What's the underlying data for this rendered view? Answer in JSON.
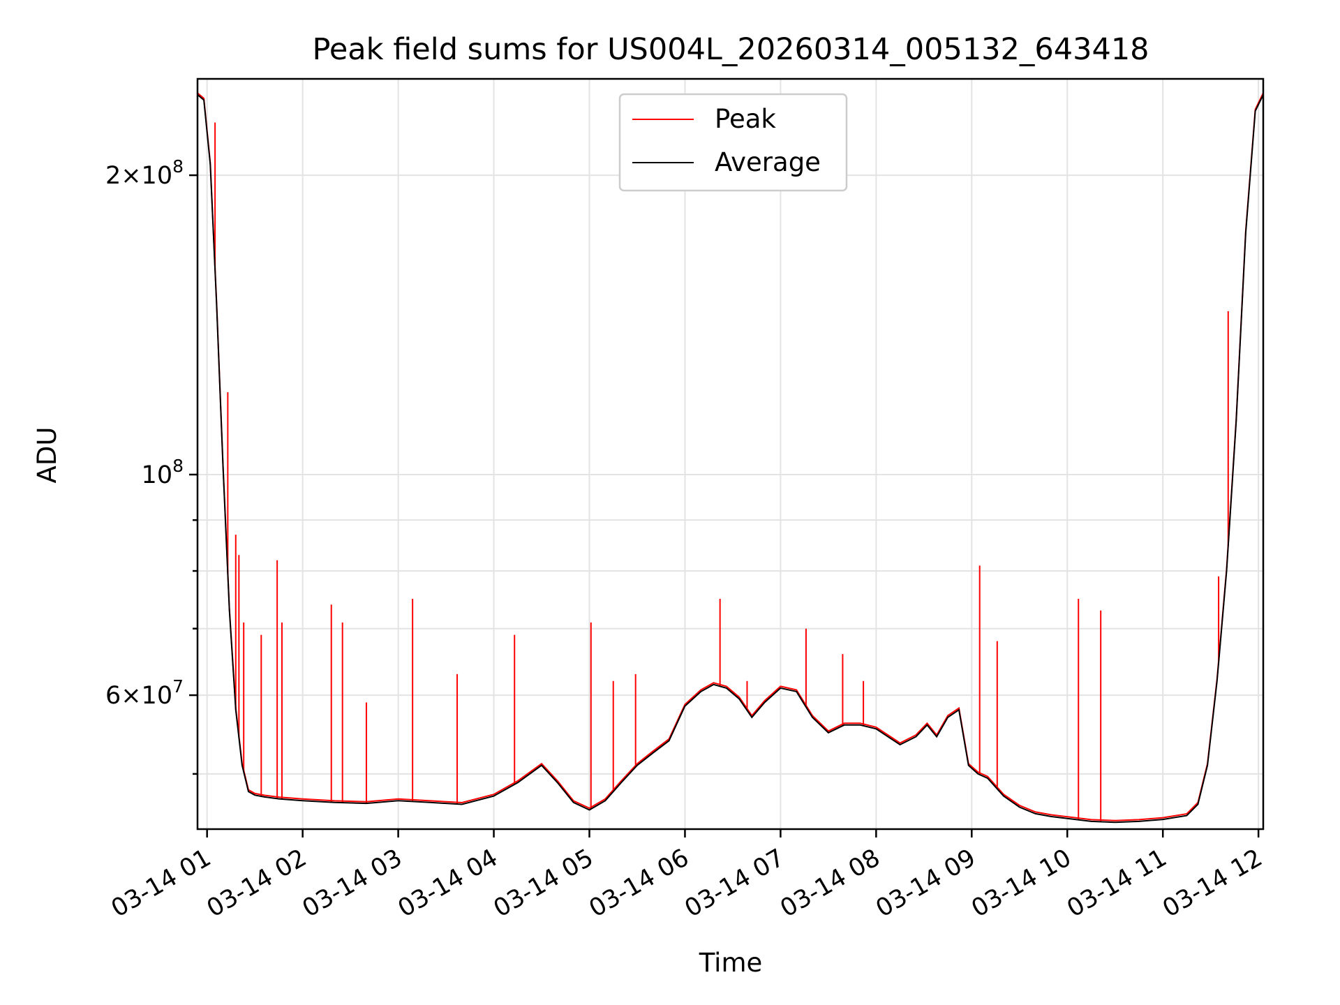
{
  "chart_data": {
    "type": "line",
    "title": "Peak field sums for US004L_20260314_005132_643418",
    "xlabel": "Time",
    "ylabel": "ADU",
    "yscale": "log",
    "grid": true,
    "legend_position": "upper center",
    "x_range": [
      "2026-03-14 00:54",
      "2026-03-14 12:03"
    ],
    "ylim": [
      44000000,
      250000000
    ],
    "x_ticks": [
      {
        "value": "2026-03-14 01:00",
        "label": "03-14 01"
      },
      {
        "value": "2026-03-14 02:00",
        "label": "03-14 02"
      },
      {
        "value": "2026-03-14 03:00",
        "label": "03-14 03"
      },
      {
        "value": "2026-03-14 04:00",
        "label": "03-14 04"
      },
      {
        "value": "2026-03-14 05:00",
        "label": "03-14 05"
      },
      {
        "value": "2026-03-14 06:00",
        "label": "03-14 06"
      },
      {
        "value": "2026-03-14 07:00",
        "label": "03-14 07"
      },
      {
        "value": "2026-03-14 08:00",
        "label": "03-14 08"
      },
      {
        "value": "2026-03-14 09:00",
        "label": "03-14 09"
      },
      {
        "value": "2026-03-14 10:00",
        "label": "03-14 10"
      },
      {
        "value": "2026-03-14 11:00",
        "label": "03-14 11"
      },
      {
        "value": "2026-03-14 12:00",
        "label": "03-14 12"
      }
    ],
    "y_major_ticks": [
      {
        "value": 60000000,
        "mantissa": "6",
        "exponent": "7"
      },
      {
        "value": 100000000,
        "mantissa": "",
        "exponent": "8"
      },
      {
        "value": 200000000,
        "mantissa": "2",
        "exponent": "8"
      }
    ],
    "y_minor_ticks": [
      50000000,
      70000000,
      80000000,
      90000000
    ],
    "series": [
      {
        "name": "Average",
        "color": "#000000",
        "x": [
          "2026-03-14 00:54",
          "2026-03-14 00:58",
          "2026-03-14 01:02",
          "2026-03-14 01:06",
          "2026-03-14 01:10",
          "2026-03-14 01:14",
          "2026-03-14 01:18",
          "2026-03-14 01:22",
          "2026-03-14 01:26",
          "2026-03-14 01:30",
          "2026-03-14 01:36",
          "2026-03-14 01:45",
          "2026-03-14 02:00",
          "2026-03-14 02:20",
          "2026-03-14 02:40",
          "2026-03-14 03:00",
          "2026-03-14 03:20",
          "2026-03-14 03:40",
          "2026-03-14 04:00",
          "2026-03-14 04:15",
          "2026-03-14 04:30",
          "2026-03-14 04:40",
          "2026-03-14 04:50",
          "2026-03-14 05:00",
          "2026-03-14 05:10",
          "2026-03-14 05:20",
          "2026-03-14 05:30",
          "2026-03-14 05:40",
          "2026-03-14 05:50",
          "2026-03-14 06:00",
          "2026-03-14 06:10",
          "2026-03-14 06:18",
          "2026-03-14 06:26",
          "2026-03-14 06:34",
          "2026-03-14 06:42",
          "2026-03-14 06:50",
          "2026-03-14 07:00",
          "2026-03-14 07:10",
          "2026-03-14 07:20",
          "2026-03-14 07:30",
          "2026-03-14 07:40",
          "2026-03-14 07:50",
          "2026-03-14 08:00",
          "2026-03-14 08:15",
          "2026-03-14 08:25",
          "2026-03-14 08:32",
          "2026-03-14 08:38",
          "2026-03-14 08:45",
          "2026-03-14 08:52",
          "2026-03-14 08:58",
          "2026-03-14 09:04",
          "2026-03-14 09:10",
          "2026-03-14 09:20",
          "2026-03-14 09:30",
          "2026-03-14 09:40",
          "2026-03-14 09:50",
          "2026-03-14 10:00",
          "2026-03-14 10:15",
          "2026-03-14 10:30",
          "2026-03-14 10:45",
          "2026-03-14 11:00",
          "2026-03-14 11:15",
          "2026-03-14 11:22",
          "2026-03-14 11:28",
          "2026-03-14 11:34",
          "2026-03-14 11:40",
          "2026-03-14 11:46",
          "2026-03-14 11:52",
          "2026-03-14 11:58",
          "2026-03-14 12:03"
        ],
        "y": [
          241000000,
          238000000,
          205000000,
          148000000,
          102000000,
          73000000,
          58000000,
          51000000,
          48000000,
          47600000,
          47400000,
          47200000,
          47000000,
          46800000,
          46700000,
          47000000,
          46800000,
          46600000,
          47500000,
          49000000,
          51000000,
          49000000,
          46800000,
          46000000,
          47000000,
          49000000,
          51000000,
          52500000,
          54000000,
          58500000,
          60500000,
          61500000,
          61000000,
          59500000,
          57000000,
          59000000,
          61000000,
          60500000,
          57000000,
          55000000,
          56000000,
          56000000,
          55500000,
          53500000,
          54500000,
          56000000,
          54500000,
          57000000,
          58000000,
          51000000,
          50000000,
          49500000,
          47500000,
          46300000,
          45600000,
          45300000,
          45100000,
          44800000,
          44700000,
          44800000,
          45000000,
          45400000,
          46600000,
          51000000,
          62000000,
          80000000,
          113000000,
          175000000,
          232000000,
          241000000
        ]
      },
      {
        "name": "Peak",
        "color": "#ff0000",
        "x": [
          "2026-03-14 01:05",
          "2026-03-14 01:13",
          "2026-03-14 01:18",
          "2026-03-14 01:20",
          "2026-03-14 01:23",
          "2026-03-14 01:34",
          "2026-03-14 01:44",
          "2026-03-14 01:47",
          "2026-03-14 02:18",
          "2026-03-14 02:25",
          "2026-03-14 02:40",
          "2026-03-14 03:09",
          "2026-03-14 03:37",
          "2026-03-14 04:13",
          "2026-03-14 05:01",
          "2026-03-14 05:15",
          "2026-03-14 05:29",
          "2026-03-14 06:22",
          "2026-03-14 06:39",
          "2026-03-14 07:16",
          "2026-03-14 07:39",
          "2026-03-14 07:52",
          "2026-03-14 09:05",
          "2026-03-14 09:16",
          "2026-03-14 10:07",
          "2026-03-14 10:21",
          "2026-03-14 11:35",
          "2026-03-14 11:41"
        ],
        "y": [
          226000000,
          121000000,
          87000000,
          83000000,
          71000000,
          69000000,
          82000000,
          71000000,
          74000000,
          71000000,
          59000000,
          75000000,
          63000000,
          69000000,
          71000000,
          62000000,
          63000000,
          75000000,
          62000000,
          70000000,
          66000000,
          62000000,
          81000000,
          68000000,
          75000000,
          73000000,
          79000000,
          146000000
        ]
      }
    ]
  }
}
